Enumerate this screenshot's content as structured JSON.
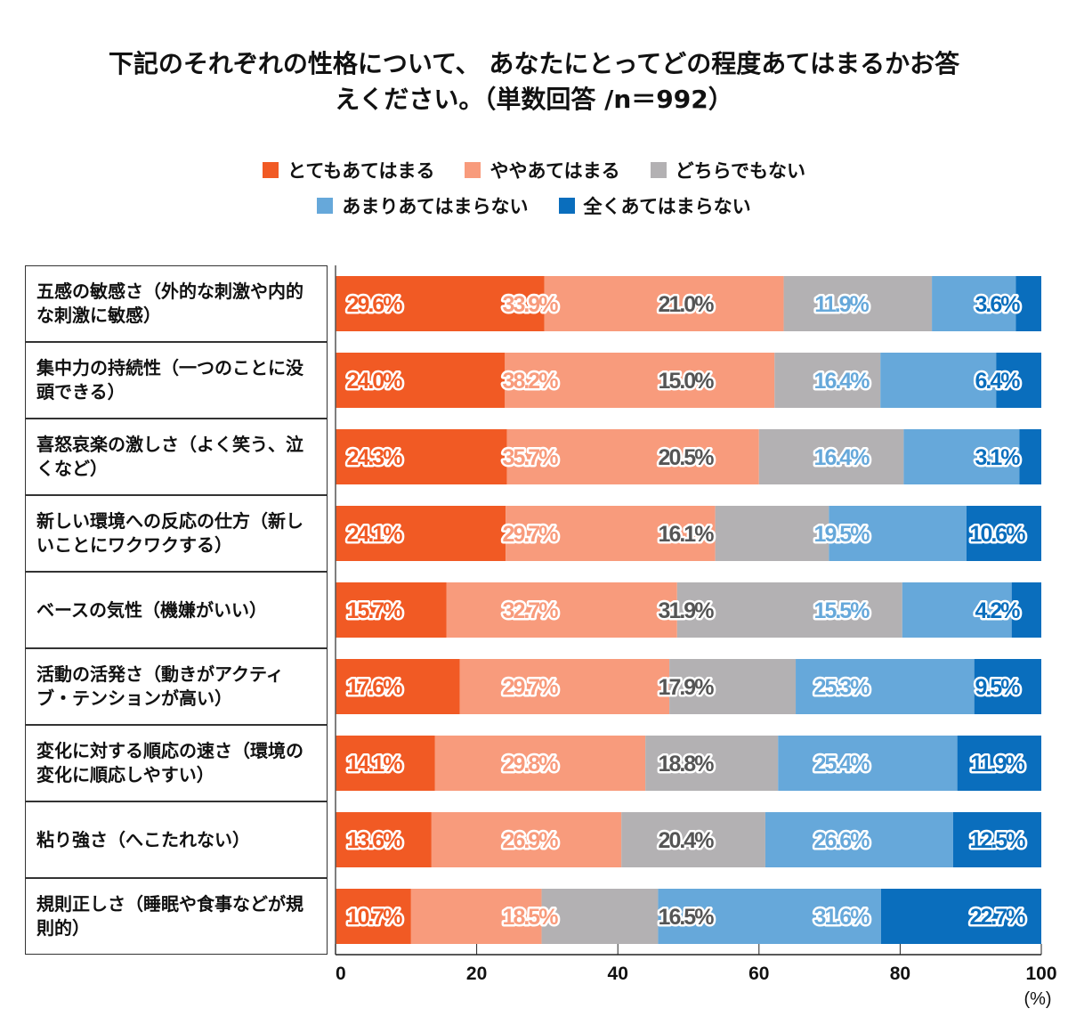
{
  "chart_data": {
    "type": "bar",
    "orientation": "horizontal",
    "stacked": true,
    "title_lines": [
      "下記のそれぞれの性格について、 あなたにとってどの程度あてはまるかお答",
      "えください。（単数回答 /n＝992）"
    ],
    "categories": [
      "五感の敏感さ（外的な刺激や内的な刺激に敏感）",
      "集中力の持続性（一つのことに没頭できる）",
      "喜怒哀楽の激しさ（よく笑う、泣くなど）",
      "新しい環境への反応の仕方（新しいことにワクワクする）",
      "ベースの気性（機嫌がいい）",
      "活動の活発さ（動きがアクティブ・テンションが高い）",
      "変化に対する順応の速さ（環境の変化に順応しやすい）",
      "粘り強さ（へこたれない）",
      "規則正しさ（睡眠や食事などが規則的）"
    ],
    "series": [
      {
        "name": "とてもあてはまる",
        "color": "#F15A24",
        "label_color": "#F15A24",
        "values": [
          29.6,
          24.0,
          24.3,
          24.1,
          15.7,
          17.6,
          14.1,
          13.6,
          10.7
        ]
      },
      {
        "name": "ややあてはまる",
        "color": "#F89B7C",
        "label_color": "#F89B7C",
        "values": [
          33.9,
          38.2,
          35.7,
          29.7,
          32.7,
          29.7,
          29.8,
          26.9,
          18.5
        ]
      },
      {
        "name": "どちらでもない",
        "color": "#B3B1B3",
        "label_color": "#555555",
        "values": [
          21.0,
          15.0,
          20.5,
          16.1,
          31.9,
          17.9,
          18.8,
          20.4,
          16.5
        ]
      },
      {
        "name": "あまりあてはまらない",
        "color": "#66A8DA",
        "label_color": "#66A8DA",
        "values": [
          11.9,
          16.4,
          16.4,
          19.5,
          15.5,
          25.3,
          25.4,
          26.6,
          31.6
        ]
      },
      {
        "name": "全くあてはまらない",
        "color": "#0A6EBD",
        "label_color": "#0A6EBD",
        "values": [
          3.6,
          6.4,
          3.1,
          10.6,
          4.2,
          9.5,
          11.9,
          12.5,
          22.7
        ]
      }
    ],
    "xlim": [
      0,
      100
    ],
    "xticks": [
      "0",
      "20",
      "40",
      "60",
      "80",
      "100"
    ],
    "xunit": "(%)",
    "legend_placement": "top",
    "grid": false
  }
}
